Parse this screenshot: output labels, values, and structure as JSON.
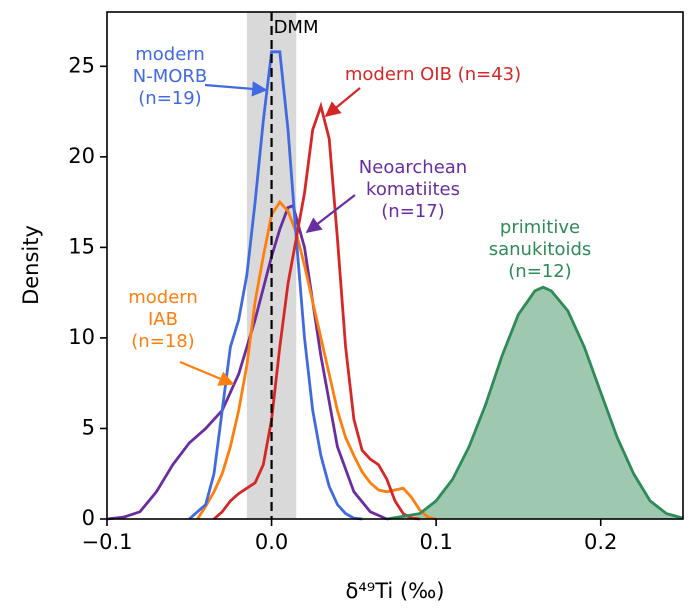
{
  "chart_data": {
    "type": "density",
    "xlabel": "δ⁴⁹Ti (‰)",
    "ylabel": "Density",
    "xlim": [
      -0.1,
      0.25
    ],
    "ylim": [
      0,
      28
    ],
    "xticks": [
      {
        "value": -0.1,
        "label": "−0.1"
      },
      {
        "value": 0,
        "label": "0.0"
      },
      {
        "value": 0.1,
        "label": "0.1"
      },
      {
        "value": 0.2,
        "label": "0.2"
      }
    ],
    "yticks": [
      0,
      5,
      10,
      15,
      20,
      25
    ],
    "reference": {
      "label": "DMM",
      "value": 0,
      "band": [
        -0.015,
        0.015
      ]
    },
    "series": [
      {
        "annotation": [
          "Neoarchean",
          "komatiites",
          "(n=17)"
        ],
        "color": "#6a2d9f",
        "filled": false,
        "x": [
          -0.1,
          -0.09,
          -0.08,
          -0.07,
          -0.06,
          -0.05,
          -0.04,
          -0.03,
          -0.02,
          -0.01,
          0,
          0.005,
          0.01,
          0.013,
          0.02,
          0.025,
          0.03,
          0.04,
          0.05,
          0.06,
          0.07
        ],
        "values": [
          0,
          0.1,
          0.4,
          1.5,
          3,
          4.2,
          5,
          6,
          8,
          11,
          14.5,
          16,
          17.2,
          17.3,
          15,
          12,
          9,
          4,
          1.5,
          0.4,
          0
        ]
      },
      {
        "annotation": [
          "modern",
          "IAB",
          "(n=18)"
        ],
        "color": "#ff7f0e",
        "filled": false,
        "x": [
          -0.045,
          -0.04,
          -0.035,
          -0.03,
          -0.025,
          -0.02,
          -0.015,
          -0.01,
          -0.005,
          0,
          0.005,
          0.01,
          0.015,
          0.02,
          0.025,
          0.03,
          0.035,
          0.04,
          0.045,
          0.05,
          0.055,
          0.06,
          0.065,
          0.07,
          0.075,
          0.08,
          0.085,
          0.09,
          0.095,
          0.1
        ],
        "values": [
          0,
          0.7,
          1.5,
          2.5,
          4,
          6,
          8.5,
          12,
          14.5,
          16.8,
          17.5,
          17,
          15.8,
          14,
          12,
          10,
          8,
          6,
          4.5,
          3.5,
          2.6,
          2,
          1.6,
          1.5,
          1.6,
          1.7,
          1.2,
          0.5,
          0.1,
          0
        ]
      },
      {
        "annotation": [
          "modern",
          "N-MORB",
          "(n=19)"
        ],
        "color": "#4169e1",
        "filled": false,
        "x": [
          -0.05,
          -0.04,
          -0.035,
          -0.03,
          -0.025,
          -0.02,
          -0.015,
          -0.01,
          -0.005,
          0,
          0.005,
          0.01,
          0.015,
          0.02,
          0.025,
          0.03,
          0.035,
          0.04,
          0.045,
          0.05,
          0.055
        ],
        "values": [
          0,
          0.8,
          2.5,
          6,
          9.5,
          11,
          13.5,
          17.5,
          22,
          25.8,
          25.8,
          21.5,
          15.5,
          10,
          6,
          3.5,
          1.8,
          0.8,
          0.3,
          0.05,
          0
        ]
      },
      {
        "annotation": [
          "modern OIB (n=43)"
        ],
        "color": "#d62728",
        "filled": false,
        "x": [
          -0.035,
          -0.03,
          -0.025,
          -0.02,
          -0.015,
          -0.01,
          -0.005,
          0,
          0.005,
          0.01,
          0.015,
          0.02,
          0.025,
          0.03,
          0.035,
          0.04,
          0.045,
          0.05,
          0.055,
          0.06,
          0.065,
          0.07,
          0.075,
          0.08,
          0.085,
          0.09
        ],
        "values": [
          0,
          0.4,
          1,
          1.4,
          1.7,
          2,
          3,
          5.5,
          9.5,
          13,
          15.5,
          18,
          21.5,
          22.8,
          21,
          15.5,
          9.5,
          5.5,
          3.8,
          3.3,
          3,
          2.2,
          1,
          0.3,
          0.05,
          0
        ]
      },
      {
        "annotation": [
          "primitive",
          "sanukitoids",
          "(n=12)"
        ],
        "color": "#2e8b57",
        "fill": "#9fc8b0",
        "filled": true,
        "x": [
          0.07,
          0.09,
          0.1,
          0.11,
          0.12,
          0.13,
          0.14,
          0.15,
          0.16,
          0.165,
          0.17,
          0.18,
          0.19,
          0.2,
          0.21,
          0.22,
          0.23,
          0.24,
          0.25
        ],
        "values": [
          0,
          0.3,
          1,
          2.2,
          4,
          6.3,
          9,
          11.3,
          12.6,
          12.8,
          12.6,
          11.5,
          9.5,
          7,
          4.5,
          2.5,
          1,
          0.3,
          0.05
        ]
      }
    ]
  }
}
